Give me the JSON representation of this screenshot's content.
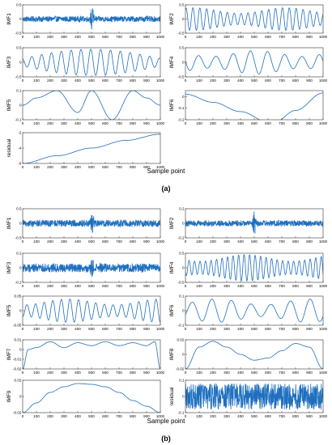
{
  "figure": {
    "panel_labels": [
      "(a)",
      "(b)"
    ],
    "xlabel": "Sample point",
    "trace_color": "#1f6fbf"
  },
  "chart_data": [
    {
      "panel": "(a)",
      "name": "IMF1",
      "ylabel": "IMF1",
      "type": "line",
      "xlim": [
        0,
        1000
      ],
      "ylim": [
        -0.5,
        0.5
      ],
      "yticks": [
        -0.5,
        0,
        0.5
      ],
      "xticks": [
        0,
        100,
        200,
        300,
        400,
        500,
        600,
        700,
        800,
        900,
        1000
      ],
      "signal": "broadband oscillation with burst near x=500",
      "amplitude": 0.1,
      "burst_center": 505,
      "burst_amplitude": 0.5
    },
    {
      "panel": "(a)",
      "name": "IMF2",
      "ylabel": "IMF2",
      "type": "line",
      "xlim": [
        0,
        1000
      ],
      "ylim": [
        -0.5,
        0.5
      ],
      "yticks": [
        -0.5,
        0,
        0.5
      ],
      "xticks": [
        0,
        100,
        200,
        300,
        400,
        500,
        600,
        700,
        800,
        900,
        1000
      ],
      "signal": "regular oscillation",
      "cycles": 20,
      "amplitude": 0.4
    },
    {
      "panel": "(a)",
      "name": "IMF3",
      "ylabel": "IMF3",
      "type": "line",
      "xlim": [
        0,
        1000
      ],
      "ylim": [
        -0.5,
        0.5
      ],
      "yticks": [
        -0.5,
        0,
        0.5
      ],
      "xticks": [
        0,
        100,
        200,
        300,
        400,
        500,
        600,
        700,
        800,
        900,
        1000
      ],
      "signal": "oscillation with growing amplitude",
      "cycles": 14,
      "amplitude": 0.45
    },
    {
      "panel": "(a)",
      "name": "IMF4",
      "ylabel": "IMF4",
      "type": "line",
      "xlim": [
        0,
        1000
      ],
      "ylim": [
        -0.5,
        0.5
      ],
      "yticks": [
        -0.5,
        0,
        0.5
      ],
      "xticks": [
        0,
        100,
        200,
        300,
        400,
        500,
        600,
        700,
        800,
        900,
        1000
      ],
      "signal": "oscillation",
      "cycles": 8,
      "amplitude": 0.4
    },
    {
      "panel": "(a)",
      "name": "IMF5",
      "ylabel": "IMF5",
      "type": "line",
      "xlim": [
        0,
        1000
      ],
      "ylim": [
        -0.1,
        0.1
      ],
      "yticks": [
        -0.1,
        0,
        0.1
      ],
      "xticks": [
        0,
        100,
        200,
        300,
        400,
        500,
        600,
        700,
        800,
        900,
        1000
      ],
      "x": [
        0,
        100,
        250,
        400,
        500,
        650,
        800,
        900,
        1000
      ],
      "y": [
        0,
        0.05,
        0.1,
        -0.05,
        0.1,
        -0.1,
        0.1,
        0.05,
        0
      ]
    },
    {
      "panel": "(a)",
      "name": "IMF6",
      "ylabel": "IMF6",
      "type": "line",
      "xlim": [
        0,
        1000
      ],
      "ylim": [
        -0.2,
        0.05
      ],
      "yticks": [
        -0.2,
        -0.1,
        0
      ],
      "xticks": [
        0,
        100,
        200,
        300,
        400,
        500,
        600,
        700,
        800,
        900,
        1000
      ],
      "x": [
        0,
        200,
        400,
        600,
        650,
        800,
        1000
      ],
      "y": [
        0.02,
        -0.05,
        -0.13,
        -0.22,
        -0.22,
        -0.12,
        0.03
      ]
    },
    {
      "panel": "(a)",
      "name": "residual",
      "ylabel": "residual",
      "type": "line",
      "xlim": [
        0,
        1000
      ],
      "ylim": [
        -6,
        -2
      ],
      "yticks": [
        -6,
        -4,
        -2
      ],
      "xticks": [
        0,
        100,
        200,
        300,
        400,
        500,
        600,
        700,
        800,
        900,
        1000
      ],
      "x": [
        0,
        250,
        500,
        750,
        1000
      ],
      "y": [
        -6,
        -5,
        -4,
        -3,
        -2.2
      ]
    },
    {
      "panel": "(b)",
      "name": "IMF1",
      "ylabel": "IMF1",
      "type": "line",
      "xlim": [
        0,
        1000
      ],
      "ylim": [
        -0.5,
        0.5
      ],
      "yticks": [
        -0.5,
        0,
        0.5
      ],
      "xticks": [
        0,
        100,
        200,
        300,
        400,
        500,
        600,
        700,
        800,
        900,
        1000
      ],
      "signal": "noise with burst near x=500",
      "amplitude": 0.12,
      "burst_center": 505,
      "burst_amplitude": 0.5
    },
    {
      "panel": "(b)",
      "name": "IMF2",
      "ylabel": "IMF2",
      "type": "line",
      "xlim": [
        0,
        1000
      ],
      "ylim": [
        -0.2,
        0.2
      ],
      "yticks": [
        -0.2,
        0,
        0.2
      ],
      "xticks": [
        0,
        100,
        200,
        300,
        400,
        500,
        600,
        700,
        800,
        900,
        1000
      ],
      "signal": "noise with spike near x=500",
      "amplitude": 0.04,
      "burst_center": 500,
      "burst_amplitude": 0.2
    },
    {
      "panel": "(b)",
      "name": "IMF3",
      "ylabel": "IMF3",
      "type": "line",
      "xlim": [
        0,
        1000
      ],
      "ylim": [
        -0.2,
        0.2
      ],
      "yticks": [
        -0.2,
        0,
        0.2
      ],
      "xticks": [
        0,
        100,
        200,
        300,
        400,
        500,
        600,
        700,
        800,
        900,
        1000
      ],
      "signal": "noise with burst near x=500",
      "amplitude": 0.06,
      "burst_center": 505,
      "burst_amplitude": 0.2
    },
    {
      "panel": "(b)",
      "name": "IMF4",
      "ylabel": "IMF4",
      "type": "line",
      "xlim": [
        0,
        1000
      ],
      "ylim": [
        -0.5,
        0.5
      ],
      "yticks": [
        -0.5,
        0,
        0.5
      ],
      "xticks": [
        0,
        100,
        200,
        300,
        400,
        500,
        600,
        700,
        800,
        900,
        1000
      ],
      "signal": "regular oscillation",
      "cycles": 25,
      "amplitude": 0.45
    },
    {
      "panel": "(b)",
      "name": "IMF5",
      "ylabel": "IMF5",
      "type": "line",
      "xlim": [
        0,
        1000
      ],
      "ylim": [
        -0.05,
        0.05
      ],
      "yticks": [
        -0.05,
        0,
        0.05
      ],
      "xticks": [
        0,
        100,
        200,
        300,
        400,
        500,
        600,
        700,
        800,
        900,
        1000
      ],
      "signal": "oscillation",
      "cycles": 16,
      "amplitude": 0.04
    },
    {
      "panel": "(b)",
      "name": "IMF6",
      "ylabel": "IMF6",
      "type": "line",
      "xlim": [
        0,
        1000
      ],
      "ylim": [
        -0.1,
        0.1
      ],
      "yticks": [
        -0.1,
        0,
        0.1
      ],
      "xticks": [
        0,
        100,
        200,
        300,
        400,
        500,
        600,
        700,
        800,
        900,
        1000
      ],
      "signal": "oscillation",
      "cycles": 7,
      "amplitude": 0.08
    },
    {
      "panel": "(b)",
      "name": "IMF7",
      "ylabel": "IMF7",
      "type": "line",
      "xlim": [
        0,
        1000
      ],
      "ylim": [
        -0.02,
        0.01
      ],
      "yticks": [
        -0.02,
        -0.01,
        0,
        0.01
      ],
      "xticks": [
        0,
        100,
        200,
        300,
        400,
        500,
        600,
        700,
        800,
        900,
        1000
      ],
      "x": [
        0,
        40,
        100,
        200,
        300,
        400,
        500,
        600,
        700,
        800,
        900,
        960,
        1000
      ],
      "y": [
        -0.02,
        0,
        0.002,
        0.008,
        0.002,
        0.007,
        0.004,
        0.008,
        0.004,
        0.007,
        0.004,
        0.008,
        -0.02
      ]
    },
    {
      "panel": "(b)",
      "name": "IMF8",
      "ylabel": "IMF8",
      "type": "line",
      "xlim": [
        0,
        1000
      ],
      "ylim": [
        -0.02,
        0.02
      ],
      "yticks": [
        -0.02,
        0,
        0.02
      ],
      "xticks": [
        0,
        100,
        200,
        300,
        400,
        500,
        600,
        700,
        800,
        900,
        1000
      ],
      "x": [
        0,
        100,
        200,
        300,
        400,
        500,
        600,
        700,
        800,
        900,
        1000
      ],
      "y": [
        -0.02,
        0.01,
        0.018,
        0.01,
        0,
        -0.008,
        -0.005,
        0.005,
        0.015,
        0.01,
        -0.02
      ]
    },
    {
      "panel": "(b)",
      "name": "IMF9",
      "ylabel": "IMF9",
      "type": "line",
      "xlim": [
        0,
        1000
      ],
      "ylim": [
        -0.02,
        0.02
      ],
      "yticks": [
        -0.02,
        0,
        0.02
      ],
      "xticks": [
        0,
        100,
        200,
        300,
        400,
        500,
        600,
        700,
        800,
        900,
        1000
      ],
      "x": [
        0,
        100,
        200,
        300,
        400,
        500,
        600,
        700,
        800,
        900,
        1000
      ],
      "y": [
        -0.02,
        -0.008,
        0.005,
        0.012,
        0.016,
        0.015,
        0.012,
        0.005,
        -0.005,
        -0.012,
        -0.02
      ]
    },
    {
      "panel": "(b)",
      "name": "residual",
      "ylabel": "residual",
      "type": "line",
      "xlim": [
        0,
        1000
      ],
      "ylim": [
        -0.1,
        0.1
      ],
      "yticks": [
        -0.1,
        0,
        0.1
      ],
      "xticks": [
        0,
        100,
        200,
        300,
        400,
        500,
        600,
        700,
        800,
        900,
        1000
      ],
      "signal": "noise",
      "amplitude": 0.08
    }
  ]
}
